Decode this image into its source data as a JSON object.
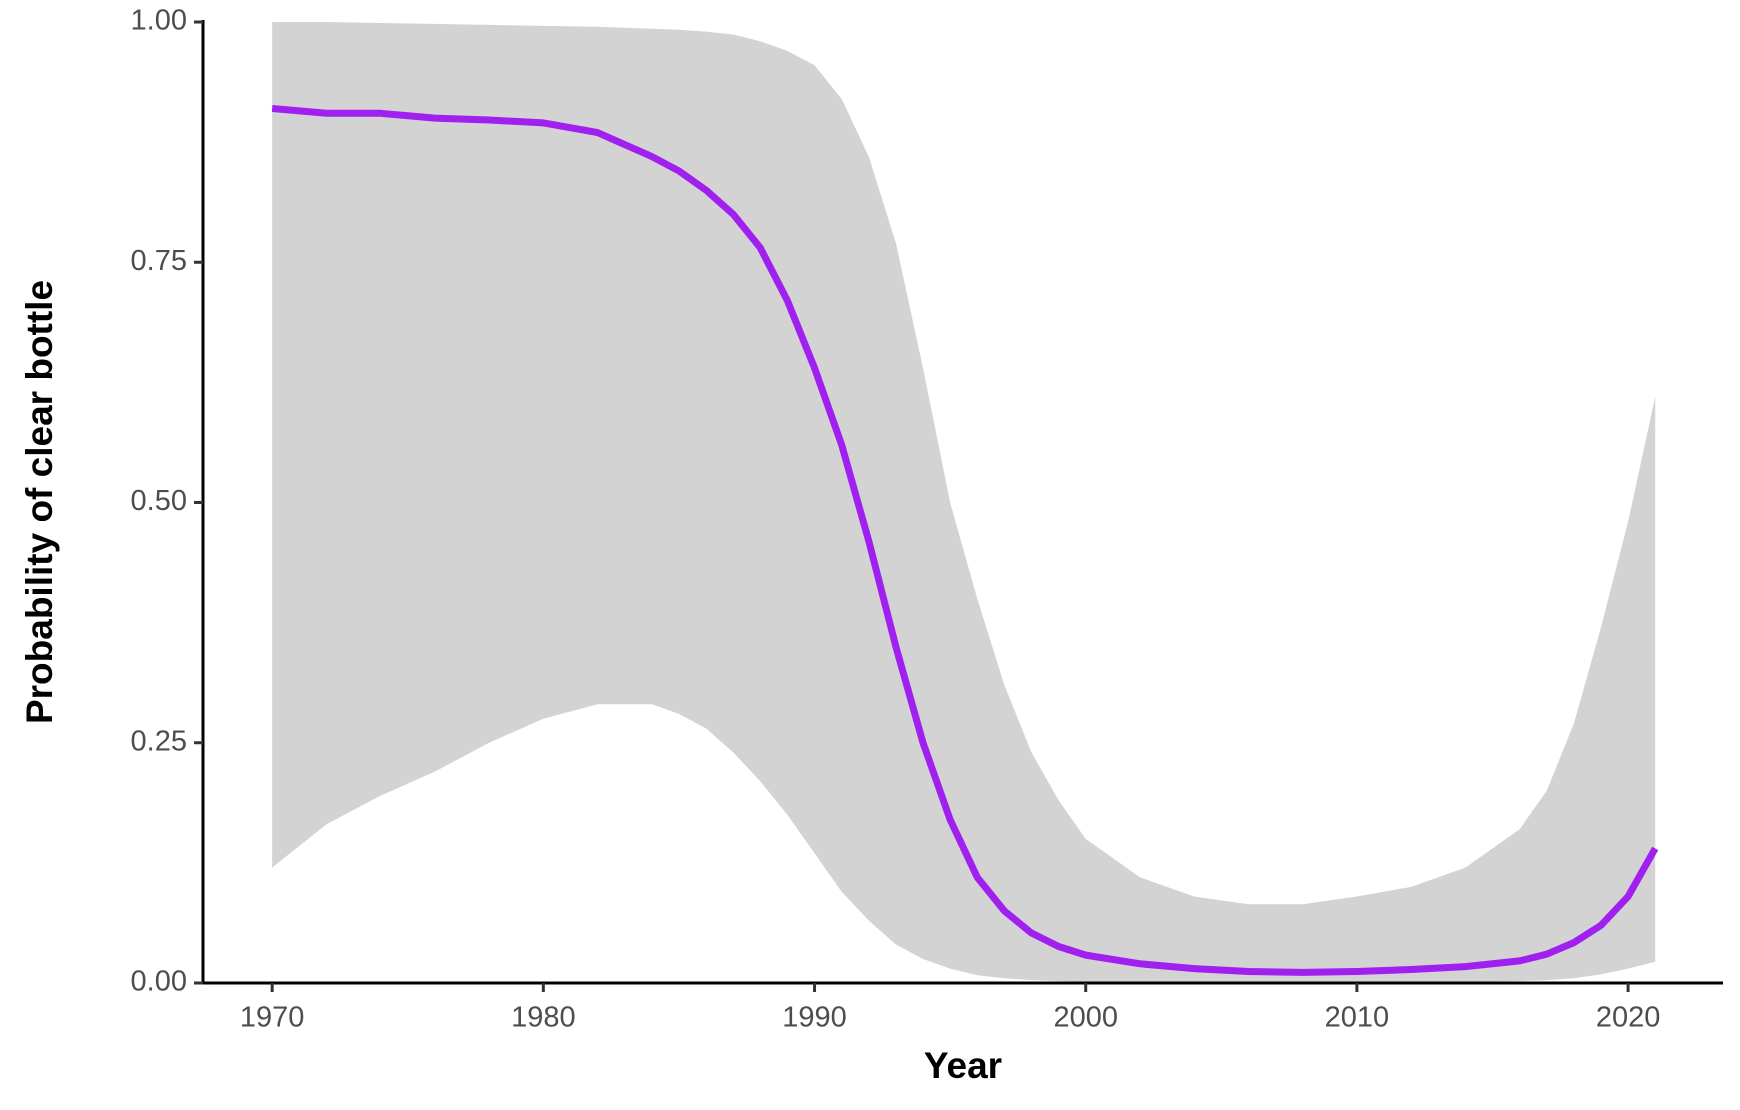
{
  "chart_data": {
    "type": "line",
    "xlabel": "Year",
    "ylabel": "Probability of clear bottle",
    "x": [
      1970,
      1972,
      1974,
      1976,
      1978,
      1980,
      1982,
      1984,
      1985,
      1986,
      1987,
      1988,
      1989,
      1990,
      1991,
      1992,
      1993,
      1994,
      1995,
      1996,
      1997,
      1998,
      1999,
      2000,
      2002,
      2004,
      2006,
      2008,
      2010,
      2012,
      2014,
      2016,
      2017,
      2018,
      2019,
      2020,
      2021
    ],
    "values": [
      0.91,
      0.905,
      0.905,
      0.9,
      0.898,
      0.895,
      0.885,
      0.86,
      0.845,
      0.825,
      0.8,
      0.765,
      0.71,
      0.64,
      0.56,
      0.46,
      0.35,
      0.25,
      0.17,
      0.11,
      0.075,
      0.052,
      0.038,
      0.029,
      0.02,
      0.015,
      0.012,
      0.011,
      0.012,
      0.014,
      0.017,
      0.023,
      0.03,
      0.042,
      0.06,
      0.09,
      0.14
    ],
    "ci_upper": [
      1.0,
      1.0,
      0.999,
      0.998,
      0.997,
      0.996,
      0.995,
      0.993,
      0.992,
      0.99,
      0.987,
      0.98,
      0.97,
      0.955,
      0.92,
      0.86,
      0.77,
      0.64,
      0.5,
      0.4,
      0.31,
      0.24,
      0.19,
      0.15,
      0.11,
      0.09,
      0.082,
      0.082,
      0.09,
      0.1,
      0.12,
      0.16,
      0.2,
      0.27,
      0.37,
      0.48,
      0.61
    ],
    "ci_lower": [
      0.12,
      0.165,
      0.195,
      0.22,
      0.25,
      0.275,
      0.29,
      0.29,
      0.28,
      0.265,
      0.24,
      0.21,
      0.175,
      0.135,
      0.095,
      0.065,
      0.04,
      0.025,
      0.015,
      0.008,
      0.005,
      0.003,
      0.002,
      0.001,
      0.001,
      0.001,
      0.001,
      0.001,
      0.001,
      0.001,
      0.001,
      0.002,
      0.003,
      0.005,
      0.009,
      0.015,
      0.022
    ],
    "color": "#a020f0",
    "band_color": "#d3d3d3",
    "xlim": [
      1967.45,
      2023.5
    ],
    "ylim": [
      0,
      1
    ],
    "xticks": [
      1970,
      1980,
      1990,
      2000,
      2010,
      2020
    ],
    "yticks": [
      {
        "value": 0,
        "label": "0.00"
      },
      {
        "value": 0.25,
        "label": "0.25"
      },
      {
        "value": 0.5,
        "label": "0.50"
      },
      {
        "value": 0.75,
        "label": "0.75"
      },
      {
        "value": 1,
        "label": "1.00"
      }
    ],
    "grid": false
  }
}
